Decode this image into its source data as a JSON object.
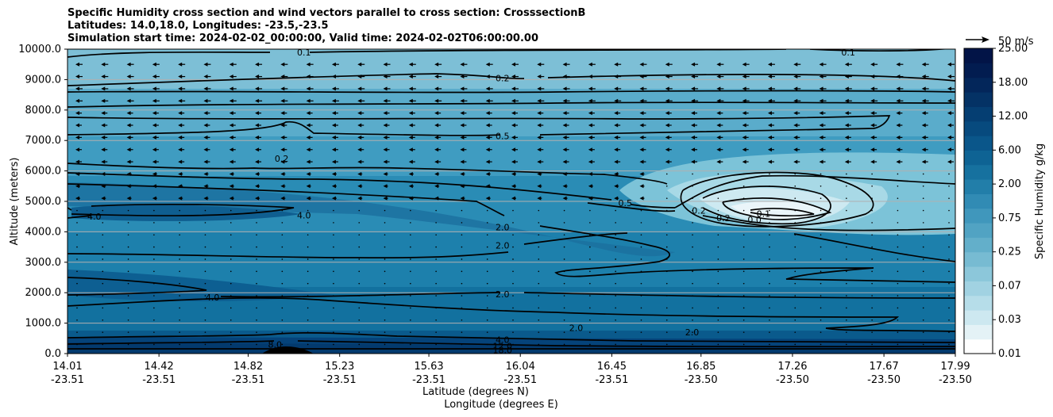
{
  "chart_data": {
    "type": "contour",
    "title_lines": [
      "Specific Humidity cross section and wind vectors parallel to cross section: CrosssectionB",
      "Latitudes: 14.0,18.0, Longitudes: -23.5,-23.5",
      "Simulation start time: 2024-02-02_00:00:00, Valid time: 2024-02-02T06:00:00.00"
    ],
    "ylabel": "Altitude (meters)",
    "xlabel_lat": "Latitude (degrees N)",
    "xlabel_lon": "Longitude (degrees E)",
    "ylim": [
      0,
      10000
    ],
    "yticks": [
      "0.0",
      "1000.0",
      "2000.0",
      "3000.0",
      "4000.0",
      "5000.0",
      "6000.0",
      "7000.0",
      "8000.0",
      "9000.0",
      "10000.0"
    ],
    "xlim": [
      14.01,
      17.99
    ],
    "xticks_lat": [
      "14.01",
      "14.42",
      "14.82",
      "15.23",
      "15.63",
      "16.04",
      "16.45",
      "16.85",
      "17.26",
      "17.67",
      "17.99"
    ],
    "xticks_lon": [
      "-23.51",
      "-23.51",
      "-23.51",
      "-23.51",
      "-23.51",
      "-23.51",
      "-23.51",
      "-23.50",
      "-23.50",
      "-23.50",
      "-23.50"
    ],
    "colorbar_label": "Specific Humidity g/kg",
    "colorbar_ticks": [
      "0.01",
      "0.03",
      "0.07",
      "0.25",
      "0.75",
      "2.00",
      "6.00",
      "12.00",
      "18.00",
      "25.00"
    ],
    "quiver_key": "50 m/s",
    "grid": "horizontal",
    "contour_labels": [
      {
        "text": "0.1",
        "lat": 15.07,
        "alt": 9900
      },
      {
        "text": "0.1",
        "lat": 17.51,
        "alt": 9900
      },
      {
        "text": "0.2",
        "lat": 15.96,
        "alt": 9050
      },
      {
        "text": "0.5",
        "lat": 15.96,
        "alt": 7150
      },
      {
        "text": "0.2",
        "lat": 14.97,
        "alt": 6400
      },
      {
        "text": "4.0",
        "lat": 14.13,
        "alt": 4500
      },
      {
        "text": "4.0",
        "lat": 15.07,
        "alt": 4550
      },
      {
        "text": "4.0",
        "lat": 14.66,
        "alt": 1850
      },
      {
        "text": "2.0",
        "lat": 15.96,
        "alt": 4150
      },
      {
        "text": "2.0",
        "lat": 15.96,
        "alt": 3550
      },
      {
        "text": "2.0",
        "lat": 15.96,
        "alt": 1950
      },
      {
        "text": "0.5",
        "lat": 16.51,
        "alt": 4950
      },
      {
        "text": "0.2",
        "lat": 16.84,
        "alt": 4700
      },
      {
        "text": "0.2",
        "lat": 16.95,
        "alt": 4450
      },
      {
        "text": "0.1",
        "lat": 17.13,
        "alt": 4600
      },
      {
        "text": "0.0",
        "lat": 17.09,
        "alt": 4400
      },
      {
        "text": "2.0",
        "lat": 16.29,
        "alt": 850
      },
      {
        "text": "2.0",
        "lat": 16.81,
        "alt": 700
      },
      {
        "text": "4.0",
        "lat": 15.96,
        "alt": 450
      },
      {
        "text": "8.0",
        "lat": 14.94,
        "alt": 300
      },
      {
        "text": "12.0",
        "lat": 15.96,
        "alt": 250
      },
      {
        "text": "18.0",
        "lat": 15.96,
        "alt": 120
      }
    ]
  }
}
